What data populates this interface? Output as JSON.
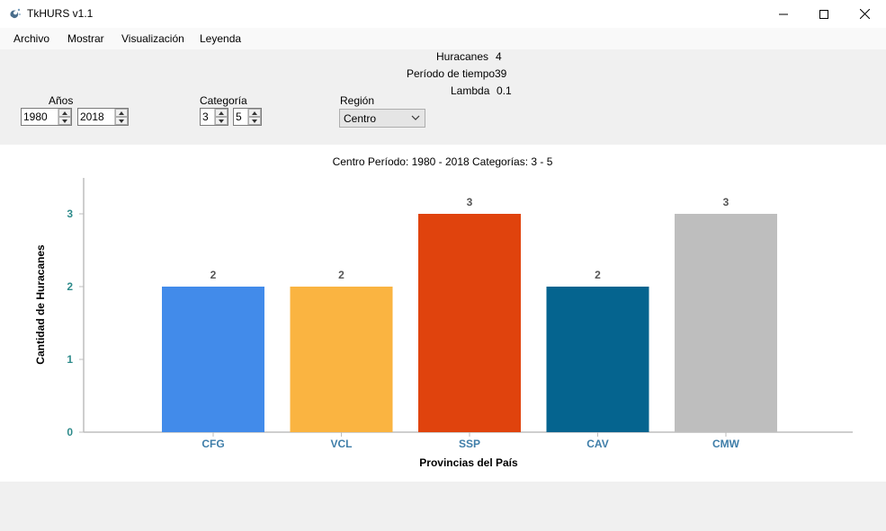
{
  "window": {
    "title": "TkHURS v1.1",
    "icon": "hurricane-app-icon",
    "controls": [
      "minimize-icon",
      "maximize-icon",
      "close-icon"
    ]
  },
  "menu": [
    "Archivo",
    "Mostrar",
    "Visualización",
    "Leyenda"
  ],
  "stats": {
    "hurricanes_label": "Huracanes",
    "hurricanes_value": "4",
    "period_label": "Período de tiempo",
    "period_value": "39",
    "lambda_label": "Lambda",
    "lambda_value": "0.1"
  },
  "controls": {
    "years_label": "Años",
    "year_from": "1980",
    "year_to": "2018",
    "category_label": "Categoría",
    "category_from": "3",
    "category_to": "5",
    "region_label": "Región",
    "region_value": "Centro"
  },
  "chart_data": {
    "type": "bar",
    "title": "Centro Período: 1980 - 2018 Categorías: 3 - 5",
    "xlabel": "Provincias del País",
    "ylabel": "Cantidad de Huracanes",
    "categories": [
      "CFG",
      "VCL",
      "SSP",
      "CAV",
      "CMW"
    ],
    "values": [
      2,
      2,
      3,
      2,
      3
    ],
    "data_labels": [
      "2",
      "2",
      "3",
      "2",
      "3"
    ],
    "colors": [
      "#428bea",
      "#fab441",
      "#e0430d",
      "#05648f",
      "#bebebe"
    ],
    "y_ticks": [
      0,
      1,
      2,
      3
    ],
    "ylim": [
      0,
      3.5
    ],
    "grid": false,
    "legend": "none",
    "tick_label_colors": {
      "x": "#3f7ea9",
      "y": "#2e8b8b"
    }
  }
}
